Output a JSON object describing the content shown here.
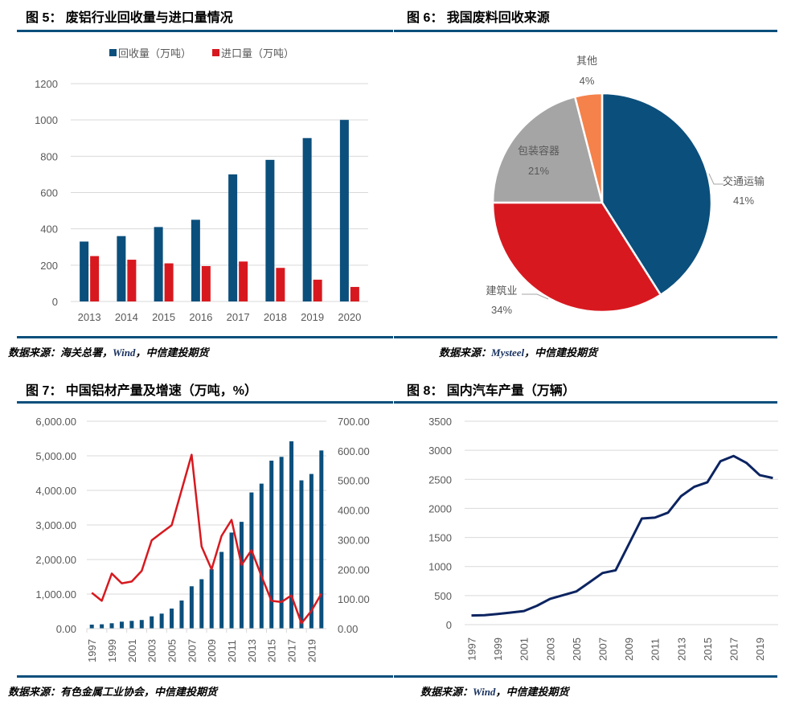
{
  "panels": {
    "fig5": {
      "title": "图 5： 废铝行业回收量与进口量情况",
      "source_prefix": "数据来源：海关总署，",
      "source_brand": "Wind",
      "source_suffix": "，中信建投期货"
    },
    "fig6": {
      "title": "图 6： 我国废料回收来源",
      "source_prefix": "数据来源：",
      "source_brand": "Mysteel",
      "source_suffix": "，中信建投期货"
    },
    "fig7": {
      "title": "图 7： 中国铝材产量及增速（万吨，%）",
      "source_prefix": "数据来源：有色金属工业协会，中信建投期货",
      "source_brand": "",
      "source_suffix": ""
    },
    "fig8": {
      "title": "图 8： 国内汽车产量（万辆）",
      "source_prefix": "数据来源：",
      "source_brand": "Wind",
      "source_suffix": "，中信建投期货"
    }
  },
  "colors": {
    "navy": "#0b4f7c",
    "red": "#d7191f",
    "grey": "#a5a5a5",
    "orange": "#f5814b",
    "dark_navy": "#0c2461",
    "grid": "#d9d9d9",
    "axis_text": "#595959"
  },
  "chart_data": [
    {
      "id": "fig5",
      "type": "bar",
      "title": "废铝行业回收量与进口量情况",
      "categories": [
        "2013",
        "2014",
        "2015",
        "2016",
        "2017",
        "2018",
        "2019",
        "2020"
      ],
      "series": [
        {
          "name": "回收量（万吨）",
          "color": "#0b4f7c",
          "values": [
            330,
            360,
            410,
            450,
            700,
            780,
            900,
            1000
          ]
        },
        {
          "name": "进口量（万吨）",
          "color": "#d7191f",
          "values": [
            250,
            230,
            210,
            195,
            220,
            185,
            120,
            80
          ]
        }
      ],
      "yticks": [
        0,
        200,
        400,
        600,
        800,
        1000,
        1200
      ],
      "ylim": [
        0,
        1200
      ],
      "legend_position": "top",
      "grid": true,
      "xlabel": "",
      "ylabel": ""
    },
    {
      "id": "fig6",
      "type": "pie",
      "title": "我国废料回收来源",
      "slices": [
        {
          "label": "交通运输",
          "value": 41,
          "pct_label": "41%",
          "color": "#0b4f7c"
        },
        {
          "label": "建筑业",
          "value": 34,
          "pct_label": "34%",
          "color": "#d7191f"
        },
        {
          "label": "包装容器",
          "value": 21,
          "pct_label": "21%",
          "color": "#a5a5a5"
        },
        {
          "label": "其他",
          "value": 4,
          "pct_label": "4%",
          "color": "#f5814b"
        }
      ]
    },
    {
      "id": "fig7",
      "type": "bar",
      "title": "中国铝材产量及增速（万吨，%）",
      "categories": [
        "1997",
        "1998",
        "1999",
        "2000",
        "2001",
        "2002",
        "2003",
        "2004",
        "2005",
        "2006",
        "2007",
        "2008",
        "2009",
        "2010",
        "2011",
        "2012",
        "2013",
        "2014",
        "2015",
        "2016",
        "2017",
        "2018",
        "2019",
        "2020"
      ],
      "xtick_labels": [
        "1997",
        "1999",
        "2001",
        "2003",
        "2005",
        "2007",
        "2009",
        "2011",
        "2013",
        "2015",
        "2017",
        "2019"
      ],
      "series": [
        {
          "name": "产量（万吨）",
          "type": "bar",
          "axis": "left",
          "color": "#0b4f7c",
          "values": [
            116,
            126,
            156,
            202,
            225,
            250,
            356,
            435,
            581,
            814,
            1226,
            1430,
            1720,
            2220,
            2780,
            3090,
            3940,
            4195,
            4860,
            4970,
            5420,
            4290,
            4475,
            5155
          ]
        },
        {
          "name": "增速（%）",
          "type": "line",
          "axis": "right",
          "color": "#d7191f",
          "values": [
            121,
            94,
            186,
            153,
            159,
            195,
            298,
            324,
            349,
            468,
            587,
            277,
            200,
            313,
            367,
            215,
            265,
            177,
            94,
            90,
            112,
            18,
            60,
            118
          ]
        }
      ],
      "y_left_ticks": [
        "0.00",
        "1,000.00",
        "2,000.00",
        "3,000.00",
        "4,000.00",
        "5,000.00",
        "6,000.00"
      ],
      "y_left_lim": [
        0,
        6000
      ],
      "y_right_ticks": [
        "0.00",
        "100.00",
        "200.00",
        "300.00",
        "400.00",
        "500.00",
        "600.00",
        "700.00"
      ],
      "y_right_lim": [
        0,
        700
      ],
      "grid": true
    },
    {
      "id": "fig8",
      "type": "line",
      "title": "国内汽车产量（万辆）",
      "x": [
        "1997",
        "1998",
        "1999",
        "2000",
        "2001",
        "2002",
        "2003",
        "2004",
        "2005",
        "2006",
        "2007",
        "2008",
        "2009",
        "2010",
        "2011",
        "2012",
        "2013",
        "2014",
        "2015",
        "2016",
        "2017",
        "2018",
        "2019",
        "2020"
      ],
      "xtick_labels": [
        "1997",
        "1999",
        "2001",
        "2003",
        "2005",
        "2007",
        "2009",
        "2011",
        "2013",
        "2015",
        "2017",
        "2019"
      ],
      "series": [
        {
          "name": "汽车产量（万辆）",
          "color": "#0c2461",
          "values": [
            158,
            163,
            183,
            207,
            234,
            325,
            444,
            507,
            571,
            728,
            888,
            935,
            1380,
            1826,
            1842,
            1927,
            2212,
            2372,
            2450,
            2812,
            2902,
            2781,
            2572,
            2523
          ]
        }
      ],
      "yticks": [
        0,
        500,
        1000,
        1500,
        2000,
        2500,
        3000,
        3500
      ],
      "ylim": [
        0,
        3500
      ],
      "grid": true
    }
  ]
}
